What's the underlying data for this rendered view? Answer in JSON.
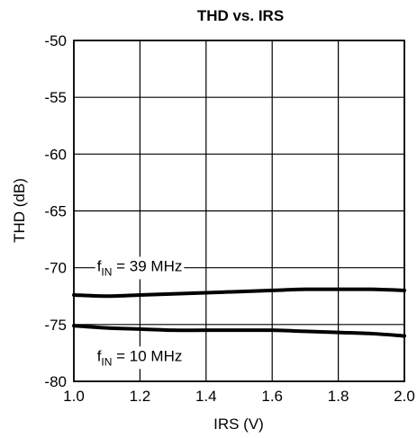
{
  "chart_data": {
    "type": "line",
    "title": "THD vs. IRS",
    "xlabel": "IRS (V)",
    "ylabel": "THD (dB)",
    "xlim": [
      1.0,
      2.0
    ],
    "ylim": [
      -80,
      -50
    ],
    "xticks": [
      "1.0",
      "1.2",
      "1.4",
      "1.6",
      "1.8",
      "2.0"
    ],
    "yticks": [
      "-50",
      "-55",
      "-60",
      "-65",
      "-70",
      "-75",
      "-80"
    ],
    "grid": true,
    "series": [
      {
        "name": "fIN = 39 MHz",
        "x": [
          1.0,
          1.1,
          1.2,
          1.3,
          1.4,
          1.5,
          1.6,
          1.7,
          1.8,
          1.9,
          2.0
        ],
        "y": [
          -72.4,
          -72.5,
          -72.4,
          -72.3,
          -72.2,
          -72.1,
          -72.0,
          -71.9,
          -71.9,
          -71.9,
          -72.0
        ]
      },
      {
        "name": "fIN = 10 MHz",
        "x": [
          1.0,
          1.1,
          1.2,
          1.3,
          1.4,
          1.5,
          1.6,
          1.7,
          1.8,
          1.9,
          2.0
        ],
        "y": [
          -75.1,
          -75.3,
          -75.4,
          -75.5,
          -75.5,
          -75.5,
          -75.5,
          -75.6,
          -75.7,
          -75.8,
          -76.0
        ]
      }
    ],
    "annotations": [
      {
        "main": "f",
        "sub": "IN",
        "rest": " = 39 MHz",
        "x": 1.07,
        "y": -70.3
      },
      {
        "main": "f",
        "sub": "IN",
        "rest": " = 10 MHz",
        "x": 1.07,
        "y": -78.2
      }
    ]
  }
}
